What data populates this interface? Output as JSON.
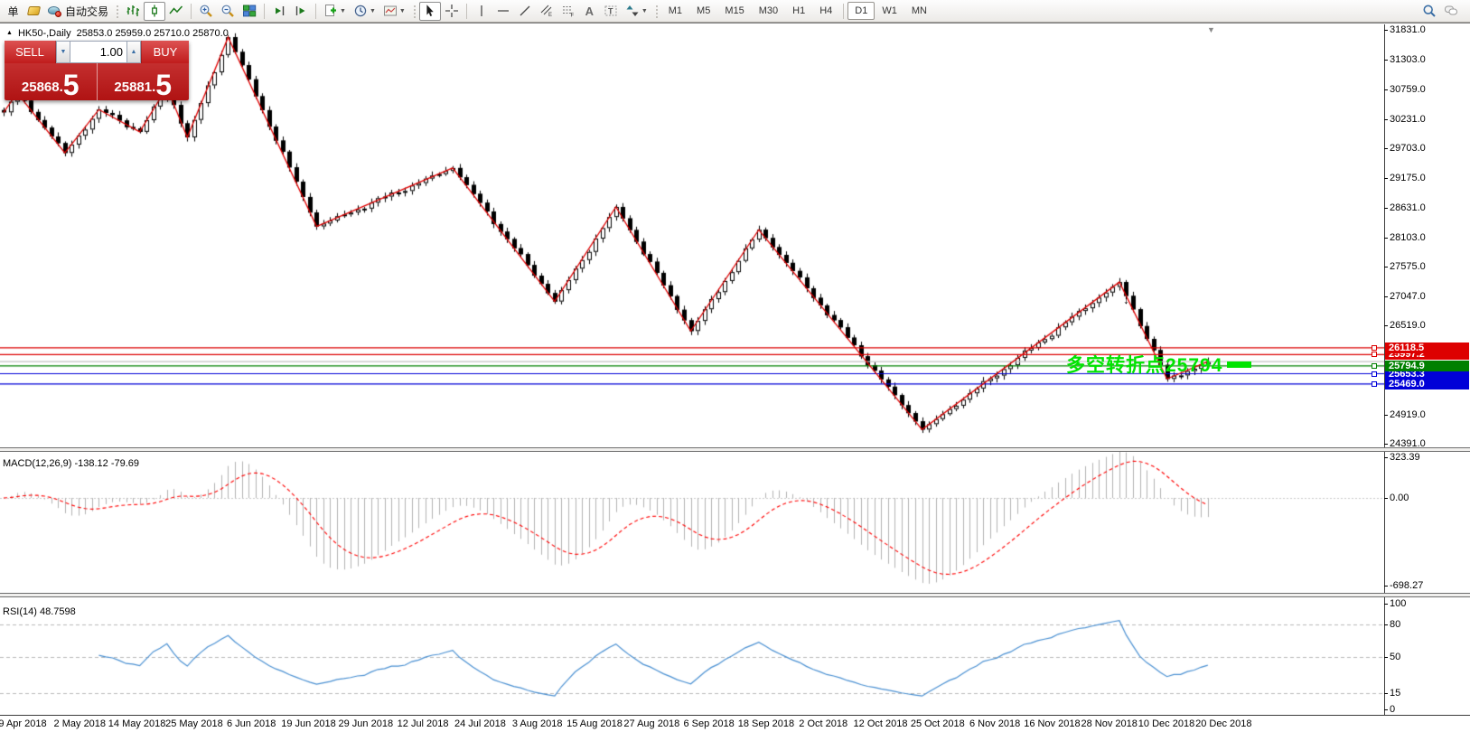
{
  "toolbar": {
    "order_label": "单",
    "autotrade_label": "自动交易",
    "timeframes": [
      "M1",
      "M5",
      "M15",
      "M30",
      "H1",
      "H4",
      "D1",
      "W1",
      "MN"
    ],
    "active_timeframe": "D1",
    "icons": [
      "gold-icon",
      "autotrade-icon",
      "bar-chart-icon",
      "candlestick-chart-icon",
      "line-chart-icon",
      "zoom-in-icon",
      "zoom-out-icon",
      "tile-windows-icon",
      "auto-scroll-icon",
      "chart-shift-icon",
      "new-chart-icon",
      "periods-clock-icon",
      "templates-icon",
      "cursor-icon",
      "crosshair-icon",
      "vertical-line-icon",
      "horizontal-line-icon",
      "trendline-icon",
      "equidistant-channel-icon",
      "fibonacci-icon",
      "text-icon",
      "text-label-icon",
      "arrows-icon",
      "search-icon",
      "chat-icon"
    ]
  },
  "chart_header": {
    "collapse_glyph": "▲",
    "symbol_period": "HK50-,Daily",
    "ohlc_text": "25853.0 25959.0 25710.0 25870.0"
  },
  "trade_panel": {
    "sell_label": "SELL",
    "buy_label": "BUY",
    "volume": "1.00",
    "sell_price_base": "25868.",
    "sell_price_big": "5",
    "buy_price_base": "25881.",
    "buy_price_big": "5"
  },
  "annotation": {
    "text": "多空转折点25794",
    "color": "#00e400",
    "arrow_glyph": "↓"
  },
  "indicator_labels": {
    "macd": "MACD(12,26,9) -138.12 -79.69",
    "rsi": "RSI(14) 48.7598"
  },
  "axes": {
    "main_ticks": [
      "31831.0",
      "31303.0",
      "30759.0",
      "30231.0",
      "29703.0",
      "29175.0",
      "28631.0",
      "28103.0",
      "27575.0",
      "27047.0",
      "26519.0",
      "24919.0",
      "24391.0"
    ],
    "macd_ticks": [
      "323.39",
      "0.00",
      "-698.27"
    ],
    "rsi_ticks": [
      "100",
      "80",
      "50",
      "15",
      "0"
    ],
    "dates": [
      "9 Apr 2018",
      "2 May 2018",
      "14 May 2018",
      "25 May 2018",
      "6 Jun 2018",
      "19 Jun 2018",
      "29 Jun 2018",
      "12 Jul 2018",
      "24 Jul 2018",
      "3 Aug 2018",
      "15 Aug 2018",
      "27 Aug 2018",
      "6 Sep 2018",
      "18 Sep 2018",
      "2 Oct 2018",
      "12 Oct 2018",
      "25 Oct 2018",
      "6 Nov 2018",
      "16 Nov 2018",
      "28 Nov 2018",
      "10 Dec 2018",
      "20 Dec 2018"
    ]
  },
  "chart_data": {
    "type": "candlestick",
    "symbol": "HK50-",
    "period": "Daily",
    "display_ohlc": {
      "open": 25853.0,
      "high": 25959.0,
      "low": 25710.0,
      "close": 25870.0
    },
    "bid": 25868.5,
    "ask": 25881.5,
    "bars": 178,
    "price_ylim": [
      24330,
      31930
    ],
    "candle_up": {
      "fill": "#ffffff",
      "border": "#000000"
    },
    "candle_down": {
      "fill": "#000000",
      "border": "#000000"
    },
    "zigzag_color": "#e00000",
    "zigzag_pivots": [
      [
        0,
        30350
      ],
      [
        2,
        30700
      ],
      [
        9,
        29620
      ],
      [
        14,
        30400
      ],
      [
        20,
        30000
      ],
      [
        24,
        30800
      ],
      [
        27,
        29900
      ],
      [
        33,
        31700
      ],
      [
        46,
        28300
      ],
      [
        66,
        29350
      ],
      [
        81,
        26950
      ],
      [
        90,
        28650
      ],
      [
        101,
        26420
      ],
      [
        111,
        28240
      ],
      [
        135,
        24650
      ],
      [
        164,
        27300
      ],
      [
        171,
        25560
      ],
      [
        177,
        25870
      ]
    ],
    "levels": [
      {
        "price": 25870.0,
        "label": "",
        "color": "#c0c0c0",
        "show_label": false
      },
      {
        "price": 25997.2,
        "label": "25997.2",
        "color": "#dd0000",
        "show_label": true
      },
      {
        "price": 26118.5,
        "label": "26118.5",
        "color": "#dd0000",
        "show_label": true
      },
      {
        "price": 25469.0,
        "label": "25469.0",
        "color": "#0000d8",
        "show_label": true
      },
      {
        "price": 25653.3,
        "label": "25653.3",
        "color": "#0000d8",
        "show_label": true
      },
      {
        "price": 25794.9,
        "label": "25794.9",
        "color": "#008000",
        "show_label": true
      }
    ],
    "indicators": {
      "macd": {
        "fast": 12,
        "slow": 26,
        "signal": 9,
        "value": -138.12,
        "signal_value": -79.69,
        "ylim": [
          -754,
          366
        ],
        "hist_color": "#b2b2b2",
        "signal_color": "#ff0000"
      },
      "rsi": {
        "period": 14,
        "value": 48.7598,
        "ylim": [
          -5.1,
          106
        ],
        "levels": [
          80,
          50,
          15
        ],
        "color": "#4a90d2"
      }
    }
  }
}
